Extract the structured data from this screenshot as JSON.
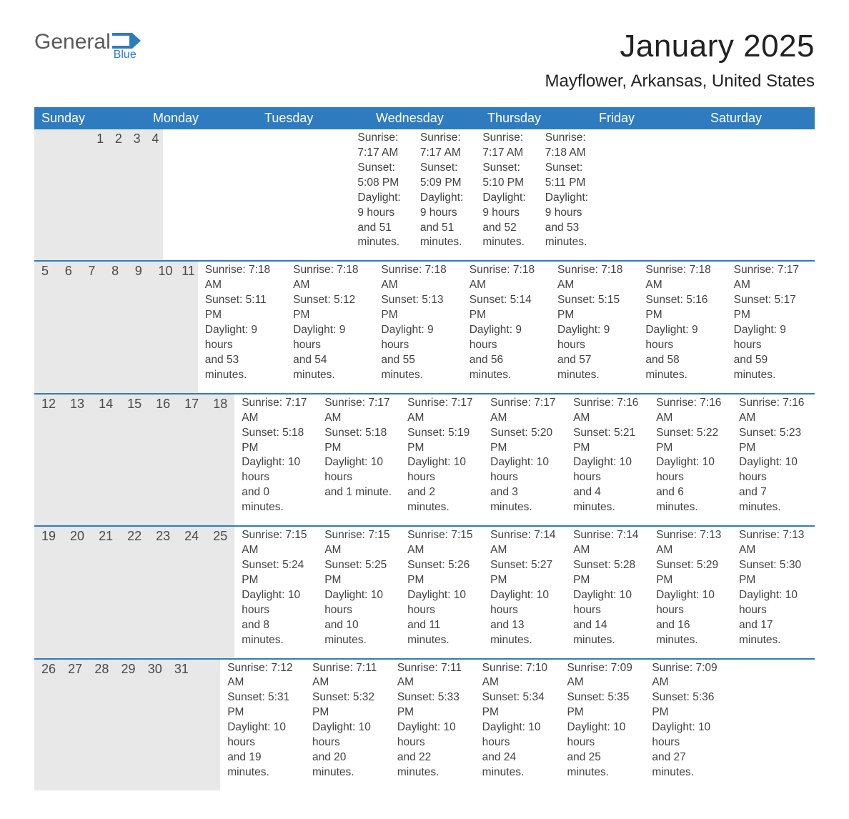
{
  "brand": {
    "general": "General",
    "blue": "Blue",
    "flag_color": "#2f7bc0"
  },
  "title": "January 2025",
  "location": "Mayflower, Arkansas, United States",
  "colors": {
    "header_bg": "#2f7bc0",
    "row_border": "#2f7bc0",
    "daynum_bg": "#e8e8e8",
    "text": "#303030",
    "background": "#ffffff"
  },
  "day_names": [
    "Sunday",
    "Monday",
    "Tuesday",
    "Wednesday",
    "Thursday",
    "Friday",
    "Saturday"
  ],
  "weeks": [
    {
      "days": [
        null,
        null,
        null,
        {
          "num": "1",
          "sunrise": "Sunrise: 7:17 AM",
          "sunset": "Sunset: 5:08 PM",
          "day1": "Daylight: 9 hours",
          "day2": "and 51 minutes."
        },
        {
          "num": "2",
          "sunrise": "Sunrise: 7:17 AM",
          "sunset": "Sunset: 5:09 PM",
          "day1": "Daylight: 9 hours",
          "day2": "and 51 minutes."
        },
        {
          "num": "3",
          "sunrise": "Sunrise: 7:17 AM",
          "sunset": "Sunset: 5:10 PM",
          "day1": "Daylight: 9 hours",
          "day2": "and 52 minutes."
        },
        {
          "num": "4",
          "sunrise": "Sunrise: 7:18 AM",
          "sunset": "Sunset: 5:11 PM",
          "day1": "Daylight: 9 hours",
          "day2": "and 53 minutes."
        }
      ]
    },
    {
      "days": [
        {
          "num": "5",
          "sunrise": "Sunrise: 7:18 AM",
          "sunset": "Sunset: 5:11 PM",
          "day1": "Daylight: 9 hours",
          "day2": "and 53 minutes."
        },
        {
          "num": "6",
          "sunrise": "Sunrise: 7:18 AM",
          "sunset": "Sunset: 5:12 PM",
          "day1": "Daylight: 9 hours",
          "day2": "and 54 minutes."
        },
        {
          "num": "7",
          "sunrise": "Sunrise: 7:18 AM",
          "sunset": "Sunset: 5:13 PM",
          "day1": "Daylight: 9 hours",
          "day2": "and 55 minutes."
        },
        {
          "num": "8",
          "sunrise": "Sunrise: 7:18 AM",
          "sunset": "Sunset: 5:14 PM",
          "day1": "Daylight: 9 hours",
          "day2": "and 56 minutes."
        },
        {
          "num": "9",
          "sunrise": "Sunrise: 7:18 AM",
          "sunset": "Sunset: 5:15 PM",
          "day1": "Daylight: 9 hours",
          "day2": "and 57 minutes."
        },
        {
          "num": "10",
          "sunrise": "Sunrise: 7:18 AM",
          "sunset": "Sunset: 5:16 PM",
          "day1": "Daylight: 9 hours",
          "day2": "and 58 minutes."
        },
        {
          "num": "11",
          "sunrise": "Sunrise: 7:17 AM",
          "sunset": "Sunset: 5:17 PM",
          "day1": "Daylight: 9 hours",
          "day2": "and 59 minutes."
        }
      ]
    },
    {
      "days": [
        {
          "num": "12",
          "sunrise": "Sunrise: 7:17 AM",
          "sunset": "Sunset: 5:18 PM",
          "day1": "Daylight: 10 hours",
          "day2": "and 0 minutes."
        },
        {
          "num": "13",
          "sunrise": "Sunrise: 7:17 AM",
          "sunset": "Sunset: 5:18 PM",
          "day1": "Daylight: 10 hours",
          "day2": "and 1 minute."
        },
        {
          "num": "14",
          "sunrise": "Sunrise: 7:17 AM",
          "sunset": "Sunset: 5:19 PM",
          "day1": "Daylight: 10 hours",
          "day2": "and 2 minutes."
        },
        {
          "num": "15",
          "sunrise": "Sunrise: 7:17 AM",
          "sunset": "Sunset: 5:20 PM",
          "day1": "Daylight: 10 hours",
          "day2": "and 3 minutes."
        },
        {
          "num": "16",
          "sunrise": "Sunrise: 7:16 AM",
          "sunset": "Sunset: 5:21 PM",
          "day1": "Daylight: 10 hours",
          "day2": "and 4 minutes."
        },
        {
          "num": "17",
          "sunrise": "Sunrise: 7:16 AM",
          "sunset": "Sunset: 5:22 PM",
          "day1": "Daylight: 10 hours",
          "day2": "and 6 minutes."
        },
        {
          "num": "18",
          "sunrise": "Sunrise: 7:16 AM",
          "sunset": "Sunset: 5:23 PM",
          "day1": "Daylight: 10 hours",
          "day2": "and 7 minutes."
        }
      ]
    },
    {
      "days": [
        {
          "num": "19",
          "sunrise": "Sunrise: 7:15 AM",
          "sunset": "Sunset: 5:24 PM",
          "day1": "Daylight: 10 hours",
          "day2": "and 8 minutes."
        },
        {
          "num": "20",
          "sunrise": "Sunrise: 7:15 AM",
          "sunset": "Sunset: 5:25 PM",
          "day1": "Daylight: 10 hours",
          "day2": "and 10 minutes."
        },
        {
          "num": "21",
          "sunrise": "Sunrise: 7:15 AM",
          "sunset": "Sunset: 5:26 PM",
          "day1": "Daylight: 10 hours",
          "day2": "and 11 minutes."
        },
        {
          "num": "22",
          "sunrise": "Sunrise: 7:14 AM",
          "sunset": "Sunset: 5:27 PM",
          "day1": "Daylight: 10 hours",
          "day2": "and 13 minutes."
        },
        {
          "num": "23",
          "sunrise": "Sunrise: 7:14 AM",
          "sunset": "Sunset: 5:28 PM",
          "day1": "Daylight: 10 hours",
          "day2": "and 14 minutes."
        },
        {
          "num": "24",
          "sunrise": "Sunrise: 7:13 AM",
          "sunset": "Sunset: 5:29 PM",
          "day1": "Daylight: 10 hours",
          "day2": "and 16 minutes."
        },
        {
          "num": "25",
          "sunrise": "Sunrise: 7:13 AM",
          "sunset": "Sunset: 5:30 PM",
          "day1": "Daylight: 10 hours",
          "day2": "and 17 minutes."
        }
      ]
    },
    {
      "days": [
        {
          "num": "26",
          "sunrise": "Sunrise: 7:12 AM",
          "sunset": "Sunset: 5:31 PM",
          "day1": "Daylight: 10 hours",
          "day2": "and 19 minutes."
        },
        {
          "num": "27",
          "sunrise": "Sunrise: 7:11 AM",
          "sunset": "Sunset: 5:32 PM",
          "day1": "Daylight: 10 hours",
          "day2": "and 20 minutes."
        },
        {
          "num": "28",
          "sunrise": "Sunrise: 7:11 AM",
          "sunset": "Sunset: 5:33 PM",
          "day1": "Daylight: 10 hours",
          "day2": "and 22 minutes."
        },
        {
          "num": "29",
          "sunrise": "Sunrise: 7:10 AM",
          "sunset": "Sunset: 5:34 PM",
          "day1": "Daylight: 10 hours",
          "day2": "and 24 minutes."
        },
        {
          "num": "30",
          "sunrise": "Sunrise: 7:09 AM",
          "sunset": "Sunset: 5:35 PM",
          "day1": "Daylight: 10 hours",
          "day2": "and 25 minutes."
        },
        {
          "num": "31",
          "sunrise": "Sunrise: 7:09 AM",
          "sunset": "Sunset: 5:36 PM",
          "day1": "Daylight: 10 hours",
          "day2": "and 27 minutes."
        },
        null
      ]
    }
  ]
}
